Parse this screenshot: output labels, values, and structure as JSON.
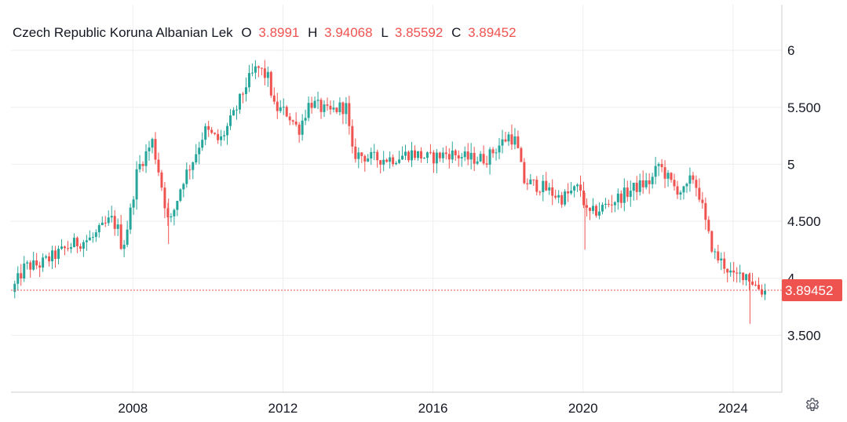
{
  "legend": {
    "symbol": "Czech Republic Koruna Albanian Lek",
    "o_label": "O",
    "o_value": "3.8991",
    "h_label": "H",
    "h_value": "3.94068",
    "l_label": "L",
    "l_value": "3.85592",
    "c_label": "C",
    "c_value": "3.89452"
  },
  "colors": {
    "up": "#26a69a",
    "down": "#ef5350",
    "grid": "#eeeeee",
    "axis_line": "#cccccc",
    "text": "#131722"
  },
  "settings_icon": "gear-icon",
  "chart_data": {
    "type": "candlestick",
    "x_tick_labels": [
      "2008",
      "2012",
      "2016",
      "2020",
      "2024"
    ],
    "y_tick_labels": [
      "3.500",
      "4",
      "4.500",
      "5",
      "5.500",
      "6"
    ],
    "ylim": [
      3.0,
      6.4
    ],
    "xlim": [
      2004.75,
      2025.3
    ],
    "last_price": 3.89452,
    "last_price_label": "3.89452",
    "grid": true,
    "anchors": [
      [
        2004.85,
        3.88
      ],
      [
        2005.2,
        4.1
      ],
      [
        2005.6,
        4.12
      ],
      [
        2006.0,
        4.2
      ],
      [
        2006.5,
        4.3
      ],
      [
        2007.0,
        4.35
      ],
      [
        2007.3,
        4.45
      ],
      [
        2007.5,
        4.52
      ],
      [
        2007.7,
        4.42
      ],
      [
        2007.8,
        4.25
      ],
      [
        2008.0,
        4.55
      ],
      [
        2008.2,
        4.95
      ],
      [
        2008.6,
        5.2
      ],
      [
        2008.8,
        4.9
      ],
      [
        2009.05,
        4.45
      ],
      [
        2009.4,
        4.85
      ],
      [
        2009.7,
        5.05
      ],
      [
        2010.0,
        5.3
      ],
      [
        2010.4,
        5.2
      ],
      [
        2010.8,
        5.45
      ],
      [
        2011.1,
        5.7
      ],
      [
        2011.4,
        5.85
      ],
      [
        2011.7,
        5.75
      ],
      [
        2011.85,
        5.5
      ],
      [
        2012.2,
        5.45
      ],
      [
        2012.5,
        5.3
      ],
      [
        2012.8,
        5.55
      ],
      [
        2013.3,
        5.45
      ],
      [
        2013.6,
        5.5
      ],
      [
        2013.8,
        5.5
      ],
      [
        2013.9,
        5.1
      ],
      [
        2014.5,
        5.05
      ],
      [
        2015.0,
        5.05
      ],
      [
        2015.5,
        5.1
      ],
      [
        2016.0,
        5.05
      ],
      [
        2016.5,
        5.1
      ],
      [
        2017.0,
        5.05
      ],
      [
        2017.5,
        5.05
      ],
      [
        2017.8,
        5.15
      ],
      [
        2018.1,
        5.25
      ],
      [
        2018.3,
        5.2
      ],
      [
        2018.5,
        4.85
      ],
      [
        2019.0,
        4.8
      ],
      [
        2019.5,
        4.7
      ],
      [
        2020.0,
        4.8
      ],
      [
        2020.2,
        4.55
      ],
      [
        2020.5,
        4.6
      ],
      [
        2021.0,
        4.7
      ],
      [
        2021.5,
        4.8
      ],
      [
        2021.9,
        4.85
      ],
      [
        2022.1,
        5.0
      ],
      [
        2022.5,
        4.8
      ],
      [
        2022.8,
        4.75
      ],
      [
        2023.0,
        4.9
      ],
      [
        2023.2,
        4.72
      ],
      [
        2023.4,
        4.4
      ],
      [
        2023.6,
        4.2
      ],
      [
        2023.9,
        4.1
      ],
      [
        2024.1,
        4.0
      ],
      [
        2024.4,
        4.05
      ],
      [
        2024.65,
        3.95
      ],
      [
        2024.85,
        3.89
      ]
    ]
  }
}
